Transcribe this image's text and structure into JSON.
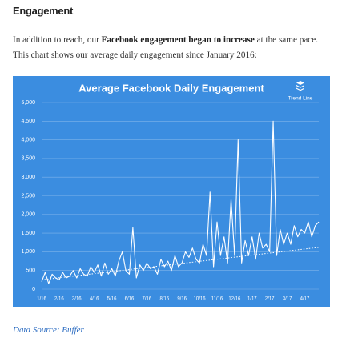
{
  "header": {
    "title": "Engagement"
  },
  "intro": {
    "before": "In addition to reach, our ",
    "bold": "Facebook engagement began to increase",
    "after": " at the same pace. This chart shows our average daily engagement since January 2016:"
  },
  "chart_data": {
    "type": "line",
    "title": "Average Facebook Daily Engagement",
    "categories": [
      "1/16",
      null,
      null,
      null,
      null,
      "2/16",
      null,
      null,
      null,
      null,
      "3/16",
      null,
      null,
      null,
      null,
      "4/16",
      null,
      null,
      null,
      null,
      "5/16",
      null,
      null,
      null,
      null,
      "6/16",
      null,
      null,
      null,
      null,
      "7/16",
      null,
      null,
      null,
      null,
      "8/16",
      null,
      null,
      null,
      null,
      "9/16",
      null,
      null,
      null,
      null,
      "10/16",
      null,
      null,
      null,
      null,
      "11/16",
      null,
      null,
      null,
      null,
      "12/16",
      null,
      null,
      null,
      null,
      "1/17",
      null,
      null,
      null,
      null,
      "2/17",
      null,
      null,
      null,
      null,
      "3/17",
      null,
      null,
      null,
      null,
      "4/17",
      null,
      null,
      null,
      null
    ],
    "series": [
      {
        "color": "#ffffff",
        "values": [
          200,
          450,
          150,
          400,
          300,
          250,
          450,
          300,
          350,
          500,
          300,
          550,
          400,
          350,
          600,
          450,
          650,
          350,
          700,
          400,
          550,
          350,
          750,
          1000,
          500,
          400,
          1650,
          300,
          650,
          500,
          700,
          550,
          600,
          400,
          800,
          600,
          750,
          500,
          900,
          600,
          700,
          1000,
          850,
          1100,
          800,
          700,
          1200,
          900,
          2600,
          600,
          1800,
          900,
          1400,
          700,
          2400,
          900,
          4000,
          700,
          1300,
          900,
          1400,
          800,
          1500,
          1100,
          1200,
          1000,
          4500,
          900,
          1600,
          1200,
          1500,
          1200,
          1700,
          1400,
          1600,
          1500,
          1800,
          1400,
          1700,
          1800
        ]
      },
      {
        "name": "Trend Line",
        "color": "#ffffff",
        "dashed": true,
        "values": [
          250,
          261,
          272,
          283,
          294,
          305,
          316,
          327,
          338,
          349,
          360,
          371,
          382,
          393,
          404,
          415,
          426,
          437,
          448,
          459,
          470,
          481,
          492,
          503,
          514,
          525,
          536,
          547,
          558,
          569,
          580,
          591,
          602,
          613,
          624,
          635,
          646,
          657,
          668,
          679,
          690,
          701,
          712,
          723,
          734,
          745,
          756,
          767,
          778,
          789,
          800,
          811,
          822,
          833,
          844,
          855,
          866,
          877,
          888,
          899,
          910,
          921,
          932,
          943,
          954,
          965,
          976,
          987,
          998,
          1009,
          1020,
          1031,
          1042,
          1053,
          1064,
          1075,
          1086,
          1097,
          1108,
          1119
        ]
      }
    ],
    "ylim": [
      0,
      5000
    ],
    "yticks": [
      0,
      500,
      {
        "value": 1000,
        "label": "1,000"
      },
      {
        "value": 1500,
        "label": "1,500"
      },
      {
        "value": 2000,
        "label": "2,000"
      },
      {
        "value": 2500,
        "label": "2,500"
      },
      {
        "value": 3000,
        "label": "3,000"
      },
      {
        "value": 3500,
        "label": "3,500"
      },
      {
        "value": 4000,
        "label": "4,000"
      },
      {
        "value": 4500,
        "label": "4,500"
      },
      {
        "value": 5000,
        "label": "5,000"
      }
    ],
    "grid": true,
    "background": "#3b8de0",
    "legend": "top-right"
  },
  "source": "Data Source: Buffer"
}
